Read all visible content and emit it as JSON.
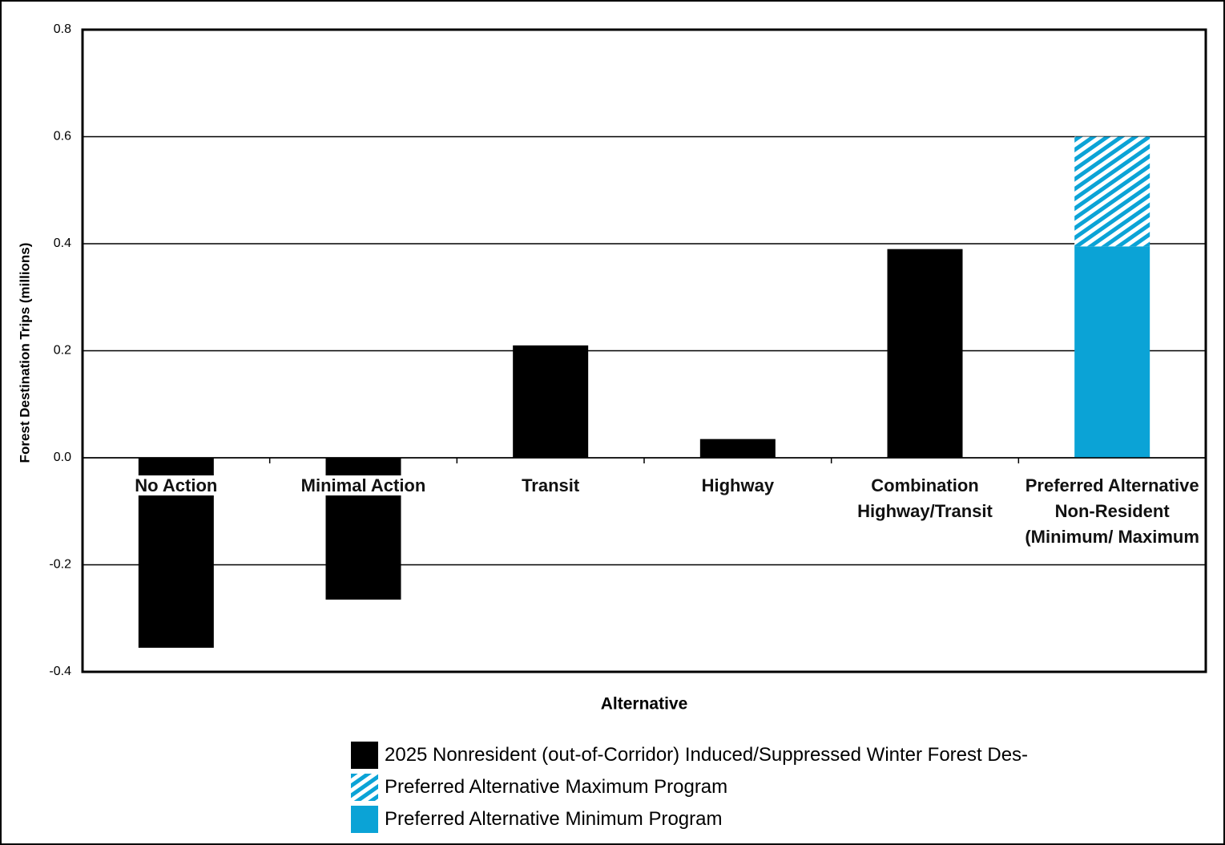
{
  "chart_data": {
    "type": "bar",
    "ylabel": "Forest Destination Trips (millions)",
    "xlabel": "Alternative",
    "categories": [
      "No Action",
      "Minimal Action",
      "Transit",
      "Highway",
      "Combination Highway/Transit",
      "Preferred Alternative Non-Resident (Minimum/ Maximum"
    ],
    "series": [
      {
        "name": "2025 Nonresident (out-of-Corridor) Induced/Suppressed Winter Forest Des-",
        "color": "#000000",
        "values": [
          -0.355,
          -0.265,
          0.21,
          0.035,
          0.39,
          null
        ]
      },
      {
        "name": "Preferred Alternative Maximum Program",
        "color": "#0ba3d6",
        "pattern": "hatch",
        "values": [
          null,
          null,
          null,
          null,
          null,
          0.205
        ]
      },
      {
        "name": "Preferred Alternative Minimum Program",
        "color": "#0ba3d6",
        "values": [
          null,
          null,
          null,
          null,
          null,
          0.395
        ]
      }
    ],
    "stacked": true,
    "ylim": [
      -0.4,
      0.8
    ],
    "yticks": [
      -0.4,
      -0.2,
      {
        "value": 0,
        "label": "0.0"
      },
      0.2,
      0.4,
      0.6,
      0.8
    ],
    "grid": true
  }
}
